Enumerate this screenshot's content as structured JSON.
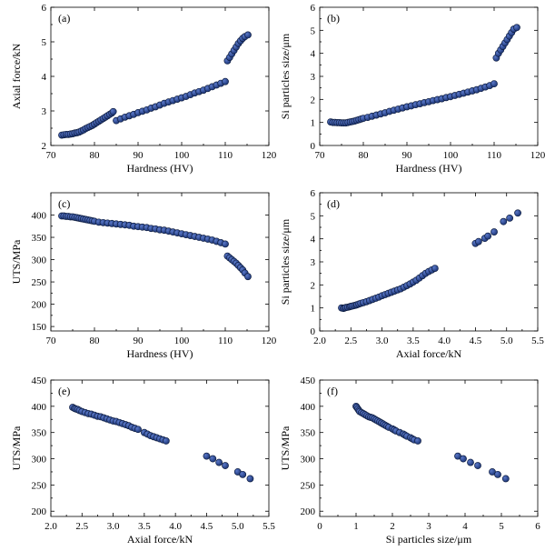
{
  "colors": {
    "point_fill": "#1e3778",
    "point_edge": "#0a1838",
    "point_highlight": "#5a78c8"
  },
  "chart_data": [
    {
      "type": "scatter",
      "panel_label": "(a)",
      "xlabel": "Hardness (HV)",
      "ylabel": "Axial force/kN",
      "xlim": [
        70,
        120
      ],
      "ylim": [
        2,
        6
      ],
      "xticks": [
        70,
        80,
        90,
        100,
        110,
        120
      ],
      "xtick_labels": [
        "70",
        "80",
        "90",
        "100",
        "110",
        "120"
      ],
      "yticks": [
        2,
        3,
        4,
        5,
        6
      ],
      "ytick_labels": [
        "2",
        "3",
        "4",
        "5",
        "6"
      ],
      "grid": false,
      "points": [
        [
          72.5,
          2.3
        ],
        [
          73,
          2.31
        ],
        [
          73.5,
          2.32
        ],
        [
          74,
          2.32
        ],
        [
          74.5,
          2.33
        ],
        [
          75,
          2.34
        ],
        [
          75.5,
          2.36
        ],
        [
          76,
          2.37
        ],
        [
          76.5,
          2.39
        ],
        [
          77,
          2.42
        ],
        [
          77.5,
          2.45
        ],
        [
          78,
          2.49
        ],
        [
          78.5,
          2.52
        ],
        [
          79,
          2.55
        ],
        [
          79.5,
          2.58
        ],
        [
          80,
          2.62
        ],
        [
          80.5,
          2.66
        ],
        [
          81,
          2.7
        ],
        [
          81.5,
          2.74
        ],
        [
          82,
          2.78
        ],
        [
          82.5,
          2.82
        ],
        [
          83,
          2.86
        ],
        [
          83.5,
          2.9
        ],
        [
          84,
          2.94
        ],
        [
          84.3,
          2.98
        ],
        [
          85,
          2.72
        ],
        [
          86,
          2.77
        ],
        [
          87,
          2.82
        ],
        [
          88,
          2.86
        ],
        [
          89,
          2.9
        ],
        [
          90,
          2.95
        ],
        [
          91,
          2.99
        ],
        [
          92,
          3.03
        ],
        [
          93,
          3.08
        ],
        [
          94,
          3.12
        ],
        [
          95,
          3.17
        ],
        [
          96,
          3.22
        ],
        [
          97,
          3.26
        ],
        [
          98,
          3.3
        ],
        [
          99,
          3.34
        ],
        [
          100,
          3.38
        ],
        [
          101,
          3.42
        ],
        [
          102,
          3.47
        ],
        [
          103,
          3.52
        ],
        [
          104,
          3.56
        ],
        [
          105,
          3.6
        ],
        [
          106,
          3.65
        ],
        [
          107,
          3.7
        ],
        [
          108,
          3.75
        ],
        [
          109,
          3.8
        ],
        [
          110,
          3.85
        ],
        [
          110.5,
          4.45
        ],
        [
          111,
          4.55
        ],
        [
          111.5,
          4.65
        ],
        [
          112,
          4.75
        ],
        [
          112.5,
          4.85
        ],
        [
          113,
          4.95
        ],
        [
          113.5,
          5.03
        ],
        [
          114,
          5.1
        ],
        [
          114.5,
          5.15
        ],
        [
          115.2,
          5.2
        ]
      ]
    },
    {
      "type": "scatter",
      "panel_label": "(b)",
      "xlabel": "Hardness (HV)",
      "ylabel": "Si particles size/μm",
      "xlim": [
        70,
        120
      ],
      "ylim": [
        0,
        6
      ],
      "xticks": [
        70,
        80,
        90,
        100,
        110,
        120
      ],
      "xtick_labels": [
        "70",
        "80",
        "90",
        "100",
        "110",
        "120"
      ],
      "yticks": [
        0,
        1,
        2,
        3,
        4,
        5,
        6
      ],
      "ytick_labels": [
        "0",
        "1",
        "2",
        "3",
        "4",
        "5",
        "6"
      ],
      "grid": false,
      "points": [
        [
          72.5,
          1.02
        ],
        [
          73,
          1.0
        ],
        [
          73.5,
          1.0
        ],
        [
          74,
          0.99
        ],
        [
          74.5,
          0.99
        ],
        [
          75,
          0.98
        ],
        [
          75.5,
          0.98
        ],
        [
          76,
          0.98
        ],
        [
          76.5,
          1.0
        ],
        [
          77,
          1.02
        ],
        [
          77.5,
          1.04
        ],
        [
          78,
          1.06
        ],
        [
          78.5,
          1.09
        ],
        [
          79,
          1.12
        ],
        [
          79.5,
          1.15
        ],
        [
          80,
          1.18
        ],
        [
          81,
          1.22
        ],
        [
          82,
          1.27
        ],
        [
          83,
          1.32
        ],
        [
          84,
          1.37
        ],
        [
          85,
          1.42
        ],
        [
          86,
          1.48
        ],
        [
          87,
          1.53
        ],
        [
          88,
          1.58
        ],
        [
          89,
          1.63
        ],
        [
          90,
          1.68
        ],
        [
          91,
          1.72
        ],
        [
          92,
          1.77
        ],
        [
          93,
          1.81
        ],
        [
          94,
          1.86
        ],
        [
          95,
          1.9
        ],
        [
          96,
          1.95
        ],
        [
          97,
          1.99
        ],
        [
          98,
          2.03
        ],
        [
          99,
          2.08
        ],
        [
          100,
          2.12
        ],
        [
          101,
          2.17
        ],
        [
          102,
          2.22
        ],
        [
          103,
          2.27
        ],
        [
          104,
          2.32
        ],
        [
          105,
          2.37
        ],
        [
          106,
          2.42
        ],
        [
          107,
          2.48
        ],
        [
          108,
          2.54
        ],
        [
          109,
          2.6
        ],
        [
          110,
          2.68
        ],
        [
          110.5,
          3.8
        ],
        [
          111,
          4.0
        ],
        [
          111.5,
          4.15
        ],
        [
          112,
          4.3
        ],
        [
          112.5,
          4.45
        ],
        [
          113,
          4.6
        ],
        [
          113.5,
          4.75
        ],
        [
          114,
          4.9
        ],
        [
          114.5,
          5.05
        ],
        [
          115.2,
          5.12
        ]
      ]
    },
    {
      "type": "scatter",
      "panel_label": "(c)",
      "xlabel": "Hardness (HV)",
      "ylabel": "UTS/MPa",
      "xlim": [
        70,
        120
      ],
      "ylim": [
        140,
        450
      ],
      "xticks": [
        70,
        80,
        90,
        100,
        110,
        120
      ],
      "xtick_labels": [
        "70",
        "80",
        "90",
        "100",
        "110",
        "120"
      ],
      "yticks": [
        150,
        200,
        250,
        300,
        350,
        400
      ],
      "ytick_labels": [
        "150",
        "200",
        "250",
        "300",
        "350",
        "400"
      ],
      "grid": false,
      "points": [
        [
          72.5,
          398
        ],
        [
          73,
          398
        ],
        [
          73.5,
          397
        ],
        [
          74,
          397
        ],
        [
          74.5,
          396
        ],
        [
          75,
          396
        ],
        [
          75.5,
          395
        ],
        [
          76,
          394
        ],
        [
          76.5,
          393
        ],
        [
          77,
          392
        ],
        [
          77.5,
          391
        ],
        [
          78,
          390
        ],
        [
          78.5,
          389
        ],
        [
          79,
          388
        ],
        [
          79.5,
          387
        ],
        [
          80,
          386
        ],
        [
          81,
          384
        ],
        [
          82,
          383
        ],
        [
          83,
          382
        ],
        [
          84,
          381
        ],
        [
          85,
          380
        ],
        [
          86,
          379
        ],
        [
          87,
          378
        ],
        [
          88,
          377
        ],
        [
          89,
          375
        ],
        [
          90,
          374
        ],
        [
          91,
          373
        ],
        [
          92,
          372
        ],
        [
          93,
          370
        ],
        [
          94,
          369
        ],
        [
          95,
          367
        ],
        [
          96,
          366
        ],
        [
          97,
          364
        ],
        [
          98,
          362
        ],
        [
          99,
          360
        ],
        [
          100,
          358
        ],
        [
          101,
          356
        ],
        [
          102,
          354
        ],
        [
          103,
          352
        ],
        [
          104,
          350
        ],
        [
          105,
          348
        ],
        [
          106,
          346
        ],
        [
          107,
          344
        ],
        [
          108,
          341
        ],
        [
          109,
          338
        ],
        [
          110,
          335
        ],
        [
          110.5,
          308
        ],
        [
          111,
          304
        ],
        [
          111.5,
          300
        ],
        [
          112,
          296
        ],
        [
          112.5,
          292
        ],
        [
          113,
          287
        ],
        [
          113.5,
          282
        ],
        [
          114,
          277
        ],
        [
          114.5,
          270
        ],
        [
          115.2,
          262
        ]
      ]
    },
    {
      "type": "scatter",
      "panel_label": "(d)",
      "xlabel": "Axial force/kN",
      "ylabel": "Si particles size/μm",
      "xlim": [
        2.0,
        5.5
      ],
      "ylim": [
        0,
        6
      ],
      "xticks": [
        2.0,
        2.5,
        3.0,
        3.5,
        4.0,
        4.5,
        5.0,
        5.5
      ],
      "xtick_labels": [
        "2.0",
        "2.5",
        "3.0",
        "3.5",
        "4.0",
        "4.5",
        "5.0",
        "5.5"
      ],
      "yticks": [
        0,
        1,
        2,
        3,
        4,
        5,
        6
      ],
      "ytick_labels": [
        "0",
        "1",
        "2",
        "3",
        "4",
        "5",
        "6"
      ],
      "grid": false,
      "points": [
        [
          2.35,
          1.0
        ],
        [
          2.38,
          0.98
        ],
        [
          2.4,
          1.0
        ],
        [
          2.42,
          1.02
        ],
        [
          2.45,
          1.03
        ],
        [
          2.48,
          1.05
        ],
        [
          2.5,
          1.07
        ],
        [
          2.52,
          1.08
        ],
        [
          2.55,
          1.1
        ],
        [
          2.58,
          1.12
        ],
        [
          2.6,
          1.14
        ],
        [
          2.63,
          1.17
        ],
        [
          2.66,
          1.2
        ],
        [
          2.7,
          1.23
        ],
        [
          2.75,
          1.27
        ],
        [
          2.8,
          1.32
        ],
        [
          2.85,
          1.37
        ],
        [
          2.9,
          1.42
        ],
        [
          2.95,
          1.47
        ],
        [
          3.0,
          1.53
        ],
        [
          3.05,
          1.58
        ],
        [
          3.1,
          1.63
        ],
        [
          3.15,
          1.68
        ],
        [
          3.2,
          1.73
        ],
        [
          3.25,
          1.78
        ],
        [
          3.3,
          1.83
        ],
        [
          3.35,
          1.9
        ],
        [
          3.4,
          1.97
        ],
        [
          3.45,
          2.04
        ],
        [
          3.5,
          2.12
        ],
        [
          3.55,
          2.2
        ],
        [
          3.6,
          2.3
        ],
        [
          3.65,
          2.4
        ],
        [
          3.7,
          2.5
        ],
        [
          3.75,
          2.58
        ],
        [
          3.8,
          2.65
        ],
        [
          3.85,
          2.72
        ],
        [
          4.5,
          3.8
        ],
        [
          4.55,
          3.88
        ],
        [
          4.65,
          4.02
        ],
        [
          4.7,
          4.12
        ],
        [
          4.8,
          4.3
        ],
        [
          4.95,
          4.75
        ],
        [
          5.05,
          4.9
        ],
        [
          5.18,
          5.12
        ]
      ]
    },
    {
      "type": "scatter",
      "panel_label": "(e)",
      "xlabel": "Axial force/kN",
      "ylabel": "UTS/MPa",
      "xlim": [
        2.0,
        5.5
      ],
      "ylim": [
        190,
        450
      ],
      "xticks": [
        2.0,
        2.5,
        3.0,
        3.5,
        4.0,
        4.5,
        5.0,
        5.5
      ],
      "xtick_labels": [
        "2.0",
        "2.5",
        "3.0",
        "3.5",
        "4.0",
        "4.5",
        "5.0",
        "5.5"
      ],
      "yticks": [
        200,
        250,
        300,
        350,
        400,
        450
      ],
      "ytick_labels": [
        "200",
        "250",
        "300",
        "350",
        "400",
        "450"
      ],
      "grid": false,
      "points": [
        [
          2.35,
          398
        ],
        [
          2.38,
          396
        ],
        [
          2.4,
          395
        ],
        [
          2.43,
          394
        ],
        [
          2.46,
          392
        ],
        [
          2.5,
          390
        ],
        [
          2.55,
          388
        ],
        [
          2.6,
          386
        ],
        [
          2.65,
          385
        ],
        [
          2.7,
          383
        ],
        [
          2.75,
          381
        ],
        [
          2.8,
          380
        ],
        [
          2.85,
          378
        ],
        [
          2.9,
          376
        ],
        [
          2.95,
          374
        ],
        [
          3.0,
          372
        ],
        [
          3.05,
          371
        ],
        [
          3.1,
          369
        ],
        [
          3.15,
          367
        ],
        [
          3.2,
          365
        ],
        [
          3.25,
          363
        ],
        [
          3.3,
          360
        ],
        [
          3.35,
          358
        ],
        [
          3.4,
          356
        ],
        [
          3.5,
          350
        ],
        [
          3.55,
          347
        ],
        [
          3.6,
          344
        ],
        [
          3.65,
          342
        ],
        [
          3.7,
          340
        ],
        [
          3.75,
          338
        ],
        [
          3.8,
          336
        ],
        [
          3.85,
          334
        ],
        [
          4.5,
          305
        ],
        [
          4.6,
          300
        ],
        [
          4.7,
          293
        ],
        [
          4.8,
          287
        ],
        [
          5.0,
          275
        ],
        [
          5.08,
          270
        ],
        [
          5.2,
          262
        ]
      ]
    },
    {
      "type": "scatter",
      "panel_label": "(f)",
      "xlabel": "Si particles size/μm",
      "ylabel": "UTS/MPa",
      "xlim": [
        0,
        6
      ],
      "ylim": [
        190,
        450
      ],
      "xticks": [
        0,
        1,
        2,
        3,
        4,
        5,
        6
      ],
      "xtick_labels": [
        "0",
        "1",
        "2",
        "3",
        "4",
        "5",
        "6"
      ],
      "yticks": [
        200,
        250,
        300,
        350,
        400,
        450
      ],
      "ytick_labels": [
        "200",
        "250",
        "300",
        "350",
        "400",
        "450"
      ],
      "grid": false,
      "points": [
        [
          1.0,
          400
        ],
        [
          1.02,
          398
        ],
        [
          1.05,
          395
        ],
        [
          1.08,
          392
        ],
        [
          1.1,
          390
        ],
        [
          1.15,
          388
        ],
        [
          1.2,
          386
        ],
        [
          1.25,
          384
        ],
        [
          1.3,
          382
        ],
        [
          1.35,
          380
        ],
        [
          1.4,
          379
        ],
        [
          1.45,
          378
        ],
        [
          1.5,
          376
        ],
        [
          1.55,
          374
        ],
        [
          1.6,
          372
        ],
        [
          1.65,
          370
        ],
        [
          1.7,
          368
        ],
        [
          1.75,
          366
        ],
        [
          1.8,
          364
        ],
        [
          1.85,
          362
        ],
        [
          1.9,
          360
        ],
        [
          2.0,
          357
        ],
        [
          2.05,
          355
        ],
        [
          2.1,
          353
        ],
        [
          2.2,
          350
        ],
        [
          2.3,
          347
        ],
        [
          2.35,
          345
        ],
        [
          2.4,
          343
        ],
        [
          2.5,
          340
        ],
        [
          2.55,
          338
        ],
        [
          2.6,
          336
        ],
        [
          2.7,
          334
        ],
        [
          3.8,
          305
        ],
        [
          3.95,
          300
        ],
        [
          4.15,
          293
        ],
        [
          4.35,
          287
        ],
        [
          4.75,
          275
        ],
        [
          4.9,
          270
        ],
        [
          5.12,
          262
        ]
      ]
    }
  ]
}
